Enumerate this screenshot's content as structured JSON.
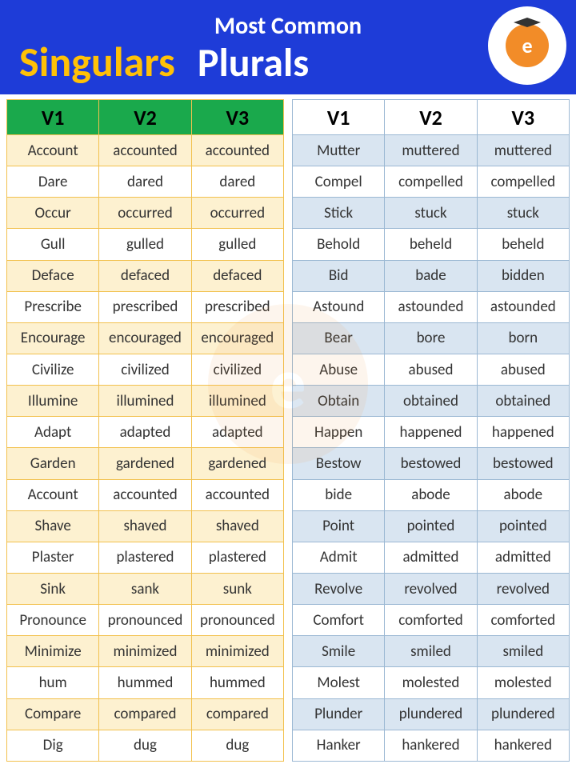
{
  "header": {
    "top_text": "Most Common",
    "singulars": "Singulars",
    "plurals": "Plurals",
    "bg_color": "#1e3cd8",
    "top_color": "#ffffff",
    "singulars_color": "#ffc107",
    "plurals_color": "#ffffff",
    "logo_url": "www.EngDic.org",
    "logo_letter": "e"
  },
  "left_table": {
    "columns": [
      "V1",
      "V2",
      "V3"
    ],
    "header_bg": "#1aa94c",
    "header_text": "#000000",
    "border_color": "#f2c14e",
    "row_alt_bg": "#fdf1d0",
    "row_bg": "#ffffff",
    "cell_text": "#333333",
    "rows": [
      [
        "Account",
        "accounted",
        "accounted"
      ],
      [
        "Dare",
        "dared",
        "dared"
      ],
      [
        "Occur",
        "occurred",
        "occurred"
      ],
      [
        "Gull",
        "gulled",
        "gulled"
      ],
      [
        "Deface",
        "defaced",
        "defaced"
      ],
      [
        "Prescribe",
        "prescribed",
        "prescribed"
      ],
      [
        "Encourage",
        "encouraged",
        "encouraged"
      ],
      [
        "Civilize",
        "civilized",
        "civilized"
      ],
      [
        "Illumine",
        "illumined",
        "illumined"
      ],
      [
        "Adapt",
        "adapted",
        "adapted"
      ],
      [
        "Garden",
        "gardened",
        "gardened"
      ],
      [
        "Account",
        "accounted",
        "accounted"
      ],
      [
        "Shave",
        "shaved",
        "shaved"
      ],
      [
        "Plaster",
        "plastered",
        "plastered"
      ],
      [
        "Sink",
        "sank",
        "sunk"
      ],
      [
        "Pronounce",
        "pronounced",
        "pronounced"
      ],
      [
        "Minimize",
        "minimized",
        "minimized"
      ],
      [
        "hum",
        "hummed",
        "hummed"
      ],
      [
        "Compare",
        "compared",
        "compared"
      ],
      [
        "Dig",
        "dug",
        "dug"
      ]
    ]
  },
  "right_table": {
    "columns": [
      "V1",
      "V2",
      "V3"
    ],
    "header_bg": "#ffffff",
    "header_text": "#000000",
    "border_color": "#9bb8d3",
    "row_alt_bg": "#d9e5f1",
    "row_bg": "#ffffff",
    "cell_text": "#333333",
    "rows": [
      [
        "Mutter",
        "muttered",
        "muttered"
      ],
      [
        "Compel",
        "compelled",
        "compelled"
      ],
      [
        "Stick",
        "stuck",
        "stuck"
      ],
      [
        "Behold",
        "beheld",
        "beheld"
      ],
      [
        "Bid",
        "bade",
        "bidden"
      ],
      [
        "Astound",
        "astounded",
        "astounded"
      ],
      [
        "Bear",
        "bore",
        "born"
      ],
      [
        "Abuse",
        "abused",
        "abused"
      ],
      [
        "Obtain",
        "obtained",
        "obtained"
      ],
      [
        "Happen",
        "happened",
        "happened"
      ],
      [
        "Bestow",
        "bestowed",
        "bestowed"
      ],
      [
        "bide",
        "abode",
        "abode"
      ],
      [
        "Point",
        "pointed",
        "pointed"
      ],
      [
        "Admit",
        "admitted",
        "admitted"
      ],
      [
        "Revolve",
        "revolved",
        "revolved"
      ],
      [
        "Comfort",
        "comforted",
        "comforted"
      ],
      [
        "Smile",
        "smiled",
        "smiled"
      ],
      [
        "Molest",
        "molested",
        "molested"
      ],
      [
        "Plunder",
        "plundered",
        "plundered"
      ],
      [
        "Hanker",
        "hankered",
        "hankered"
      ]
    ]
  }
}
